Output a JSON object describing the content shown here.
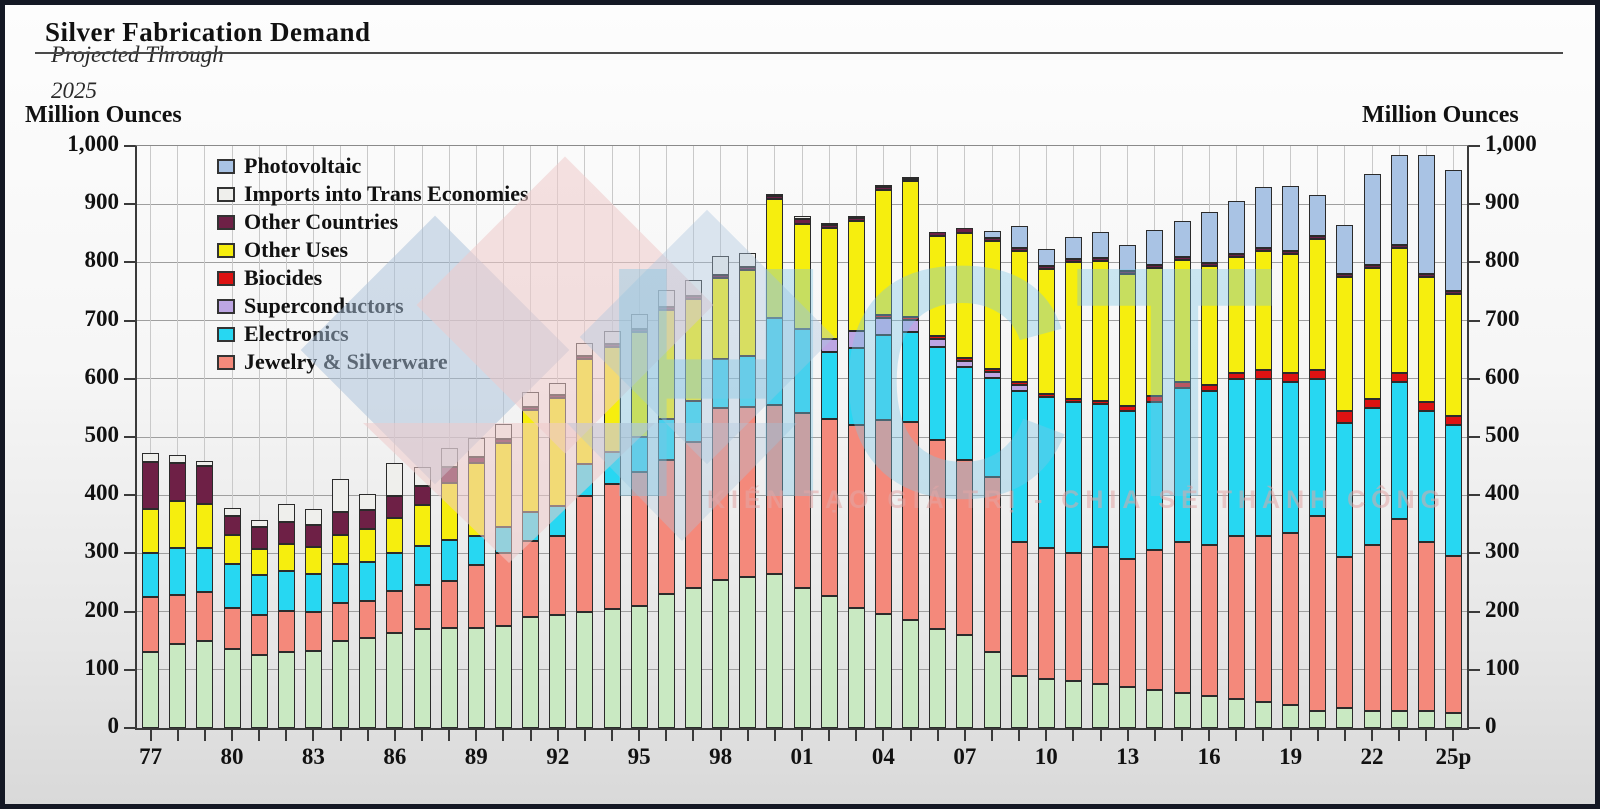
{
  "page": {
    "title": "Silver Fabrication Demand",
    "subtitle_line1": "Projected Through",
    "subtitle_line2": "2025",
    "y_axis_unit_left": "Million Ounces",
    "y_axis_unit_right": "Million Ounces"
  },
  "watermark": {
    "brand": "HCT",
    "slogan": "KIẾN TẠO GIÁ TRỊ - CHIA SẺ THÀNH CÔNG"
  },
  "legend": [
    {
      "key": "photovoltaic",
      "label": "Photovoltaic",
      "color": "#a9c3e4"
    },
    {
      "key": "imports-trans-economies",
      "label": "Imports into Trans Economies",
      "color": "#efefec"
    },
    {
      "key": "other-countries",
      "label": "Other Countries",
      "color": "#6e2046"
    },
    {
      "key": "other-uses",
      "label": "Other Uses",
      "color": "#f6ee0e"
    },
    {
      "key": "biocides",
      "label": "Biocides",
      "color": "#dd1212"
    },
    {
      "key": "superconductors",
      "label": "Superconductors",
      "color": "#bda6e3"
    },
    {
      "key": "electronics",
      "label": "Electronics",
      "color": "#27d7f2"
    },
    {
      "key": "jewelry-silverware",
      "label": "Jewelry & Silverware",
      "color": "#f4897b"
    }
  ],
  "chart_data": {
    "type": "bar",
    "stacked": true,
    "title": "Silver Fabrication Demand Projected Through 2025",
    "xlabel": "",
    "ylabel": "Million Ounces",
    "ylim": [
      0,
      1000
    ],
    "ytick_interval": 100,
    "y_tick_labels": [
      "0",
      "100",
      "200",
      "300",
      "400",
      "500",
      "600",
      "700",
      "800",
      "900",
      "1,000"
    ],
    "grid": "horizontal and vertical year gridlines",
    "legend_position": "top-left inside plot",
    "x_tick_label_every": 3,
    "categories": [
      "77",
      "78",
      "79",
      "80",
      "81",
      "82",
      "83",
      "84",
      "85",
      "86",
      "87",
      "88",
      "89",
      "90",
      "91",
      "92",
      "93",
      "94",
      "95",
      "96",
      "97",
      "98",
      "99",
      "00",
      "01",
      "02",
      "03",
      "04",
      "05",
      "06",
      "07",
      "08",
      "09",
      "10",
      "11",
      "12",
      "13",
      "14",
      "15",
      "16",
      "17",
      "18",
      "19",
      "20",
      "21",
      "22",
      "23",
      "24",
      "25p"
    ],
    "stack_order": "bottom-to-top",
    "series": [
      {
        "key": "green-unlabeled",
        "name": "Green segment (no legend entry)",
        "color": "#c9e9c2",
        "values": [
          130,
          145,
          150,
          135,
          125,
          130,
          133,
          150,
          155,
          163,
          170,
          172,
          172,
          175,
          190,
          195,
          200,
          205,
          210,
          230,
          240,
          255,
          260,
          265,
          240,
          226,
          206,
          196,
          185,
          170,
          160,
          130,
          90,
          85,
          80,
          75,
          70,
          65,
          60,
          55,
          50,
          45,
          40,
          30,
          35,
          30,
          30,
          30,
          25
        ]
      },
      {
        "key": "jewelry-silverware",
        "name": "Jewelry & Silverware",
        "color": "#f4897b",
        "values": [
          95,
          85,
          85,
          70,
          68,
          70,
          67,
          65,
          63,
          72,
          75,
          80,
          108,
          125,
          130,
          135,
          200,
          215,
          230,
          230,
          250,
          295,
          292,
          290,
          300,
          304,
          314,
          334,
          340,
          325,
          300,
          300,
          230,
          225,
          220,
          235,
          220,
          240,
          260,
          260,
          280,
          285,
          295,
          335,
          260,
          285,
          330,
          290,
          270
        ]
      },
      {
        "key": "electronics",
        "name": "Electronics",
        "color": "#27d7f2",
        "values": [
          75,
          80,
          75,
          75,
          69,
          68,
          65,
          67,
          67,
          65,
          67,
          70,
          50,
          45,
          50,
          52,
          55,
          55,
          60,
          70,
          70,
          85,
          88,
          150,
          144,
          115,
          132,
          146,
          155,
          160,
          160,
          170,
          260,
          260,
          260,
          245,
          255,
          255,
          265,
          265,
          270,
          270,
          260,
          235,
          230,
          235,
          235,
          225,
          225
        ]
      },
      {
        "key": "superconductors",
        "name": "Superconductors",
        "color": "#bda6e3",
        "values": [
          0,
          0,
          0,
          0,
          0,
          0,
          0,
          0,
          0,
          0,
          0,
          0,
          0,
          0,
          0,
          0,
          0,
          0,
          0,
          0,
          0,
          0,
          0,
          0,
          0,
          23,
          29,
          29,
          20,
          13,
          10,
          10,
          10,
          0,
          0,
          0,
          0,
          0,
          0,
          0,
          0,
          0,
          0,
          0,
          0,
          0,
          0,
          0,
          0
        ]
      },
      {
        "key": "biocides",
        "name": "Biocides",
        "color": "#dd1212",
        "values": [
          0,
          0,
          0,
          0,
          0,
          0,
          0,
          0,
          0,
          0,
          0,
          0,
          0,
          0,
          0,
          0,
          0,
          0,
          0,
          0,
          0,
          0,
          0,
          0,
          0,
          0,
          0,
          5,
          5,
          5,
          5,
          5,
          5,
          5,
          5,
          5,
          8,
          10,
          10,
          10,
          10,
          15,
          15,
          15,
          20,
          15,
          15,
          15,
          15
        ]
      },
      {
        "key": "other-uses",
        "name": "Other Uses",
        "color": "#f6ee0e",
        "values": [
          75,
          80,
          75,
          50,
          45,
          47,
          47,
          50,
          57,
          60,
          70,
          98,
          125,
          145,
          175,
          186,
          180,
          180,
          180,
          188,
          175,
          140,
          148,
          205,
          180,
          190,
          189,
          215,
          233,
          172,
          215,
          220,
          225,
          215,
          235,
          240,
          227,
          220,
          210,
          205,
          200,
          205,
          205,
          225,
          230,
          225,
          215,
          215,
          210
        ]
      },
      {
        "key": "other-countries",
        "name": "Other Countries",
        "color": "#6e2046",
        "values": [
          80,
          65,
          65,
          32,
          38,
          37,
          38,
          40,
          33,
          38,
          33,
          28,
          10,
          7,
          6,
          5,
          5,
          5,
          6,
          6,
          6,
          6,
          5,
          6,
          8,
          6,
          6,
          5,
          4,
          7,
          8,
          5,
          5,
          5,
          5,
          5,
          5,
          5,
          5,
          5,
          5,
          5,
          5,
          5,
          5,
          5,
          5,
          5,
          5
        ]
      },
      {
        "key": "imports-trans-economies",
        "name": "Imports into Trans Economies",
        "color": "#efefec",
        "values": [
          15,
          13,
          8,
          13,
          12,
          31,
          28,
          56,
          28,
          57,
          32,
          33,
          32,
          26,
          26,
          21,
          23,
          23,
          26,
          30,
          27,
          33,
          24,
          4,
          6,
          3,
          3,
          3,
          3,
          0,
          0,
          0,
          0,
          0,
          0,
          0,
          0,
          0,
          0,
          0,
          0,
          0,
          0,
          0,
          0,
          0,
          0,
          0,
          0
        ]
      },
      {
        "key": "photovoltaic",
        "name": "Photovoltaic",
        "color": "#a9c3e4",
        "values": [
          0,
          0,
          0,
          0,
          0,
          0,
          0,
          0,
          0,
          0,
          0,
          0,
          0,
          0,
          0,
          0,
          0,
          0,
          0,
          0,
          0,
          0,
          0,
          0,
          0,
          0,
          0,
          0,
          0,
          0,
          0,
          12,
          37,
          30,
          37,
          45,
          45,
          60,
          62,
          88,
          91,
          105,
          112,
          70,
          85,
          157,
          155,
          205,
          208
        ]
      }
    ]
  }
}
